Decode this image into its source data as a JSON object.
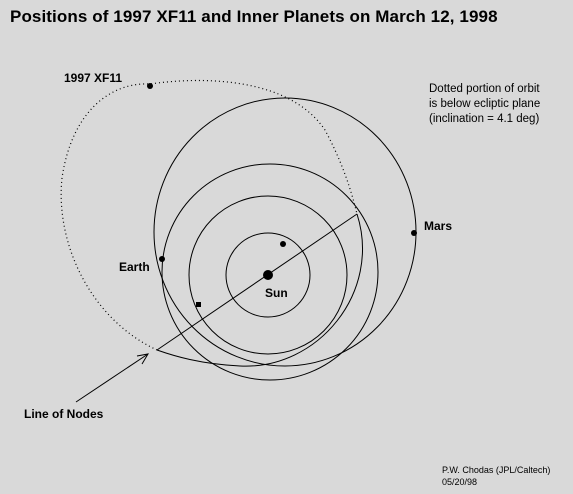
{
  "title": "Positions of 1997 XF11 and Inner Planets on March 12, 1998",
  "note": {
    "line1": "Dotted portion of orbit",
    "line2": "is below ecliptic plane",
    "line3": "(inclination = 4.1 deg)"
  },
  "labels": {
    "asteroid": "1997 XF11",
    "mars": "Mars",
    "earth": "Earth",
    "sun": "Sun",
    "line_of_nodes": "Line of Nodes"
  },
  "credit": {
    "line1": "P.W. Chodas (JPL/Caltech)",
    "line2": "05/20/98"
  },
  "colors": {
    "background": "#d9d9d9",
    "ink": "#000000"
  }
}
